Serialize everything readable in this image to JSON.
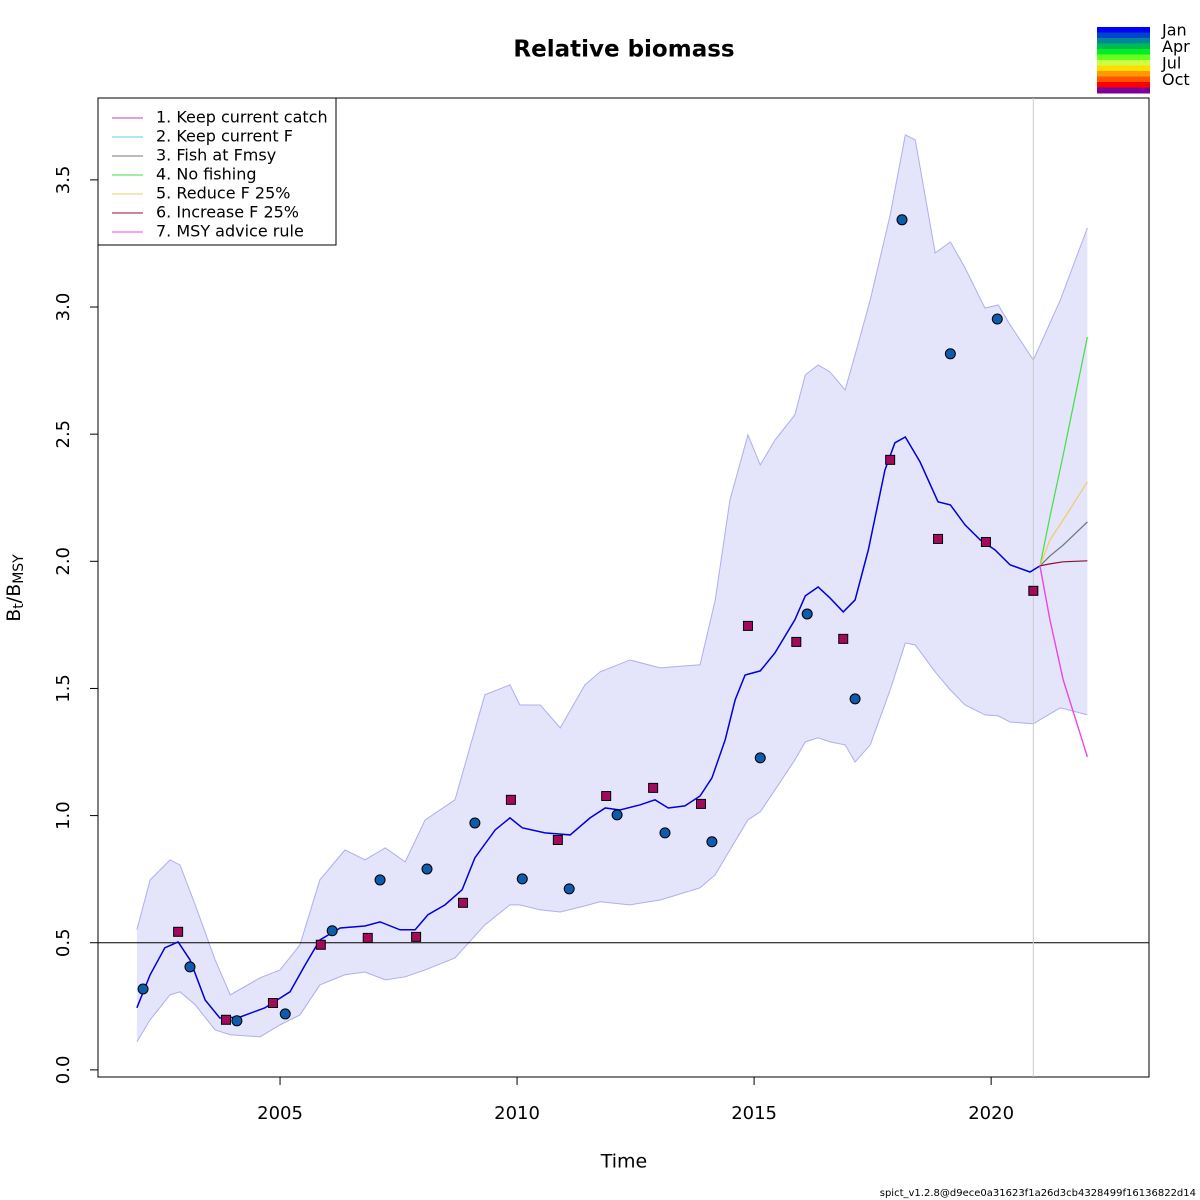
{
  "chart_data": {
    "type": "line",
    "title": "Relative biomass",
    "x_label": "Time",
    "y_label": [
      "B",
      "t",
      "/B",
      "MSY"
    ],
    "xlim": [
      2001.16,
      2023.33
    ],
    "ylim": [
      -0.028,
      3.822
    ],
    "xticks": [
      2005,
      2010,
      2015,
      2020
    ],
    "yticks": [
      {
        "value": 0,
        "label": "0.0"
      },
      0.5,
      {
        "value": 1,
        "label": "1.0"
      },
      1.5,
      {
        "value": 2,
        "label": "2.0"
      },
      2.5,
      {
        "value": 3,
        "label": "3.0"
      },
      3.5
    ],
    "hline": 0.5,
    "vline": 2020.89,
    "band": {
      "color": "#e4e4fb",
      "edge_color": "#aeaef0",
      "x": [
        2001.98,
        2002.26,
        2002.68,
        2002.89,
        2003.21,
        2003.63,
        2003.95,
        2004.58,
        2005.0,
        2005.42,
        2005.84,
        2006.37,
        2006.79,
        2007.22,
        2007.64,
        2008.06,
        2008.69,
        2009.32,
        2009.85,
        2010.06,
        2010.49,
        2010.91,
        2011.43,
        2011.75,
        2012.38,
        2013.02,
        2013.86,
        2014.18,
        2014.49,
        2014.87,
        2015.13,
        2015.44,
        2015.86,
        2016.08,
        2016.35,
        2016.6,
        2016.92,
        2017.13,
        2017.45,
        2017.87,
        2018.19,
        2018.4,
        2018.82,
        2019.14,
        2019.45,
        2019.87,
        2020.15,
        2020.4,
        2020.89,
        2021.46,
        2022.03
      ],
      "upper": [
        0.551,
        0.747,
        0.826,
        0.806,
        0.649,
        0.433,
        0.295,
        0.362,
        0.393,
        0.492,
        0.747,
        0.865,
        0.826,
        0.873,
        0.818,
        0.983,
        1.062,
        1.475,
        1.514,
        1.435,
        1.435,
        1.345,
        1.514,
        1.565,
        1.612,
        1.581,
        1.593,
        1.848,
        2.241,
        2.497,
        2.379,
        2.477,
        2.576,
        2.733,
        2.772,
        2.745,
        2.674,
        2.812,
        3.028,
        3.362,
        3.677,
        3.657,
        3.213,
        3.256,
        3.154,
        2.996,
        3.008,
        2.93,
        2.792,
        3.028,
        3.311
      ],
      "lower": [
        0.11,
        0.197,
        0.295,
        0.307,
        0.256,
        0.157,
        0.138,
        0.13,
        0.177,
        0.216,
        0.334,
        0.374,
        0.385,
        0.354,
        0.366,
        0.393,
        0.44,
        0.57,
        0.649,
        0.649,
        0.629,
        0.621,
        0.645,
        0.661,
        0.649,
        0.668,
        0.716,
        0.767,
        0.865,
        0.983,
        1.015,
        1.101,
        1.219,
        1.29,
        1.306,
        1.29,
        1.278,
        1.211,
        1.278,
        1.494,
        1.679,
        1.671,
        1.565,
        1.494,
        1.435,
        1.396,
        1.392,
        1.368,
        1.361,
        1.424,
        1.396
      ]
    },
    "estimate": {
      "color": "#0000dd",
      "x": [
        2001.98,
        2002.26,
        2002.57,
        2002.85,
        2003.1,
        2003.42,
        2003.73,
        2004.16,
        2004.68,
        2005.21,
        2005.53,
        2005.84,
        2006.27,
        2006.79,
        2007.11,
        2007.53,
        2007.85,
        2008.12,
        2008.48,
        2008.84,
        2009.11,
        2009.54,
        2009.85,
        2010.11,
        2010.59,
        2011.12,
        2011.54,
        2011.86,
        2012.17,
        2012.59,
        2012.91,
        2013.19,
        2013.54,
        2013.86,
        2014.11,
        2014.39,
        2014.6,
        2014.81,
        2015.13,
        2015.44,
        2015.86,
        2016.08,
        2016.35,
        2016.6,
        2016.88,
        2017.13,
        2017.41,
        2017.76,
        2017.97,
        2018.19,
        2018.5,
        2018.88,
        2019.14,
        2019.45,
        2019.77,
        2020.08,
        2020.4,
        2020.82,
        2021.03
      ],
      "values": [
        0.244,
        0.374,
        0.48,
        0.503,
        0.433,
        0.275,
        0.204,
        0.208,
        0.244,
        0.307,
        0.413,
        0.511,
        0.558,
        0.566,
        0.582,
        0.551,
        0.551,
        0.61,
        0.649,
        0.708,
        0.834,
        0.944,
        0.991,
        0.952,
        0.932,
        0.924,
        0.991,
        1.03,
        1.022,
        1.042,
        1.062,
        1.03,
        1.038,
        1.077,
        1.148,
        1.298,
        1.455,
        1.553,
        1.569,
        1.64,
        1.77,
        1.864,
        1.899,
        1.856,
        1.801,
        1.848,
        2.045,
        2.359,
        2.466,
        2.489,
        2.391,
        2.234,
        2.222,
        2.143,
        2.084,
        2.045,
        1.986,
        1.958,
        1.982
      ]
    },
    "observations": [
      {
        "marker": "circle",
        "color": "#0d5cab",
        "x": [
          2002.11,
          2003.1,
          2004.09,
          2005.11,
          2006.1,
          2007.11,
          2008.1,
          2009.11,
          2010.11,
          2011.1,
          2012.11,
          2013.12,
          2014.11,
          2015.13,
          2016.12,
          2017.13,
          2018.12,
          2019.14,
          2020.13
        ],
        "values": [
          0.318,
          0.405,
          0.193,
          0.22,
          0.547,
          0.747,
          0.79,
          0.971,
          0.751,
          0.712,
          1.003,
          0.932,
          0.897,
          1.227,
          1.793,
          1.459,
          3.343,
          2.816,
          2.953
        ]
      },
      {
        "marker": "square",
        "color": "#a30a5c",
        "x": [
          2002.85,
          2003.86,
          2004.85,
          2005.86,
          2006.85,
          2007.87,
          2008.86,
          2009.87,
          2010.86,
          2011.88,
          2012.87,
          2013.88,
          2014.87,
          2015.89,
          2016.88,
          2017.87,
          2018.88,
          2019.89,
          2020.89
        ],
        "values": [
          0.543,
          0.197,
          0.263,
          0.492,
          0.519,
          0.523,
          0.657,
          1.062,
          0.904,
          1.077,
          1.109,
          1.046,
          1.746,
          1.683,
          1.695,
          2.399,
          2.088,
          2.076,
          1.884
        ]
      }
    ],
    "forecast_x": [
      2021.03,
      2021.24,
      2021.52,
      2022.03
    ],
    "series": [
      {
        "name": "1. Keep current catch",
        "color": "#c040c8",
        "values": [
          1.982,
          1.77,
          1.534,
          1.231
        ]
      },
      {
        "name": "2. Keep current F",
        "color": "#66ccee",
        "values": [
          1.982,
          2.021,
          2.064,
          2.155
        ]
      },
      {
        "name": "3. Fish at Fmsy",
        "color": "#777777",
        "values": [
          1.982,
          2.021,
          2.064,
          2.155
        ]
      },
      {
        "name": "4. No fishing",
        "color": "#44dd44",
        "values": [
          1.982,
          2.175,
          2.418,
          2.882
        ]
      },
      {
        "name": "5. Reduce F 25%",
        "color": "#f0cc66",
        "values": [
          1.982,
          2.084,
          2.163,
          2.312
        ]
      },
      {
        "name": "6. Increase F 25%",
        "color": "#881133",
        "values": [
          1.982,
          1.99,
          1.998,
          2.002
        ]
      },
      {
        "name": "7. MSY advice rule",
        "color": "#ee44ee",
        "values": [
          1.982,
          1.77,
          1.534,
          1.231
        ]
      }
    ],
    "legend": "top-left",
    "season_legend": {
      "labels": [
        "Jan",
        "Apr",
        "Jul",
        "Oct"
      ],
      "colors": [
        "#0000ff",
        "#0044cc",
        "#008899",
        "#00bb55",
        "#00ee22",
        "#66ff22",
        "#ccff44",
        "#ffdd00",
        "#ff9900",
        "#ff5500",
        "#ff0000",
        "#7a0099"
      ]
    },
    "footer": "spict_v1.2.8@d9ece0a31623f1a26d3cb4328499f16136822d14"
  }
}
